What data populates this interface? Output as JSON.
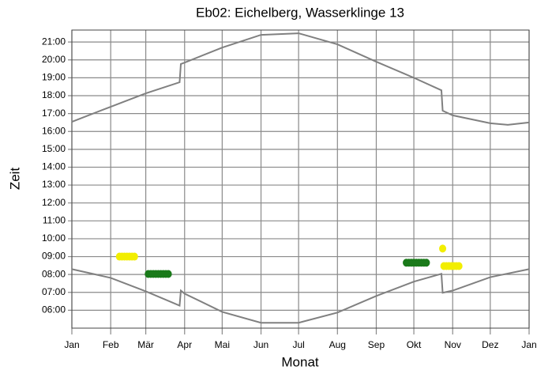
{
  "chart_data": {
    "type": "line",
    "title": "Eb02: Eichelberg, Wasserklinge 13",
    "xlabel": "Monat",
    "ylabel": "Zeit",
    "xlim": [
      0,
      365
    ],
    "xticks": [
      {
        "value": 0,
        "label": "Jan"
      },
      {
        "value": 31,
        "label": "Feb"
      },
      {
        "value": 59,
        "label": "Mär"
      },
      {
        "value": 90,
        "label": "Apr"
      },
      {
        "value": 120,
        "label": "Mai"
      },
      {
        "value": 151,
        "label": "Jun"
      },
      {
        "value": 181,
        "label": "Jul"
      },
      {
        "value": 212,
        "label": "Aug"
      },
      {
        "value": 243,
        "label": "Sep"
      },
      {
        "value": 273,
        "label": "Okt"
      },
      {
        "value": 304,
        "label": "Nov"
      },
      {
        "value": 334,
        "label": "Dez"
      },
      {
        "value": 365,
        "label": "Jan"
      }
    ],
    "ylim": [
      5,
      21.67
    ],
    "yticks": [
      {
        "value": 6,
        "label": "06:00"
      },
      {
        "value": 7,
        "label": "07:00"
      },
      {
        "value": 8,
        "label": "08:00"
      },
      {
        "value": 9,
        "label": "09:00"
      },
      {
        "value": 10,
        "label": "10:00"
      },
      {
        "value": 11,
        "label": "11:00"
      },
      {
        "value": 12,
        "label": "12:00"
      },
      {
        "value": 13,
        "label": "13:00"
      },
      {
        "value": 14,
        "label": "14:00"
      },
      {
        "value": 15,
        "label": "15:00"
      },
      {
        "value": 16,
        "label": "16:00"
      },
      {
        "value": 17,
        "label": "17:00"
      },
      {
        "value": 18,
        "label": "18:00"
      },
      {
        "value": 19,
        "label": "19:00"
      },
      {
        "value": 20,
        "label": "20:00"
      },
      {
        "value": 21,
        "label": "21:00"
      }
    ],
    "grid": true,
    "series": [
      {
        "style": "line",
        "color": "#808080",
        "x": [
          0,
          31,
          59,
          86,
          87,
          90,
          120,
          151,
          181,
          212,
          243,
          273,
          295,
          296,
          304,
          334,
          348,
          365
        ],
        "values": [
          16.54,
          17.38,
          18.13,
          18.75,
          19.77,
          19.85,
          20.69,
          21.4,
          21.49,
          20.87,
          19.9,
          19.0,
          18.3,
          17.16,
          16.9,
          16.46,
          16.37,
          16.5
        ]
      },
      {
        "style": "line",
        "color": "#808080",
        "x": [
          0,
          31,
          59,
          86,
          87,
          90,
          120,
          151,
          181,
          212,
          243,
          273,
          295,
          296,
          304,
          334,
          365
        ],
        "values": [
          8.3,
          7.81,
          7.06,
          6.26,
          7.1,
          6.93,
          5.91,
          5.3,
          5.3,
          5.87,
          6.8,
          7.6,
          8.04,
          6.98,
          7.1,
          7.85,
          8.3
        ]
      },
      {
        "style": "points",
        "color": "#f2ee00",
        "x": [
          38,
          40,
          42,
          44,
          46,
          48,
          50,
          296,
          297,
          299,
          301,
          303,
          305,
          307,
          309
        ],
        "values": [
          9.0,
          9.0,
          9.0,
          9.0,
          9.0,
          9.0,
          9.0,
          9.45,
          8.47,
          8.47,
          8.47,
          8.47,
          8.47,
          8.47,
          8.47
        ]
      },
      {
        "style": "points",
        "color": "#1a7a1a",
        "x": [
          61,
          63,
          65,
          67,
          69,
          71,
          73,
          75,
          77,
          267,
          269,
          271,
          273,
          275,
          277,
          279,
          281,
          283
        ],
        "values": [
          8.03,
          8.03,
          8.03,
          8.03,
          8.03,
          8.03,
          8.03,
          8.03,
          8.03,
          8.66,
          8.66,
          8.66,
          8.66,
          8.66,
          8.66,
          8.66,
          8.66,
          8.66
        ]
      }
    ]
  }
}
